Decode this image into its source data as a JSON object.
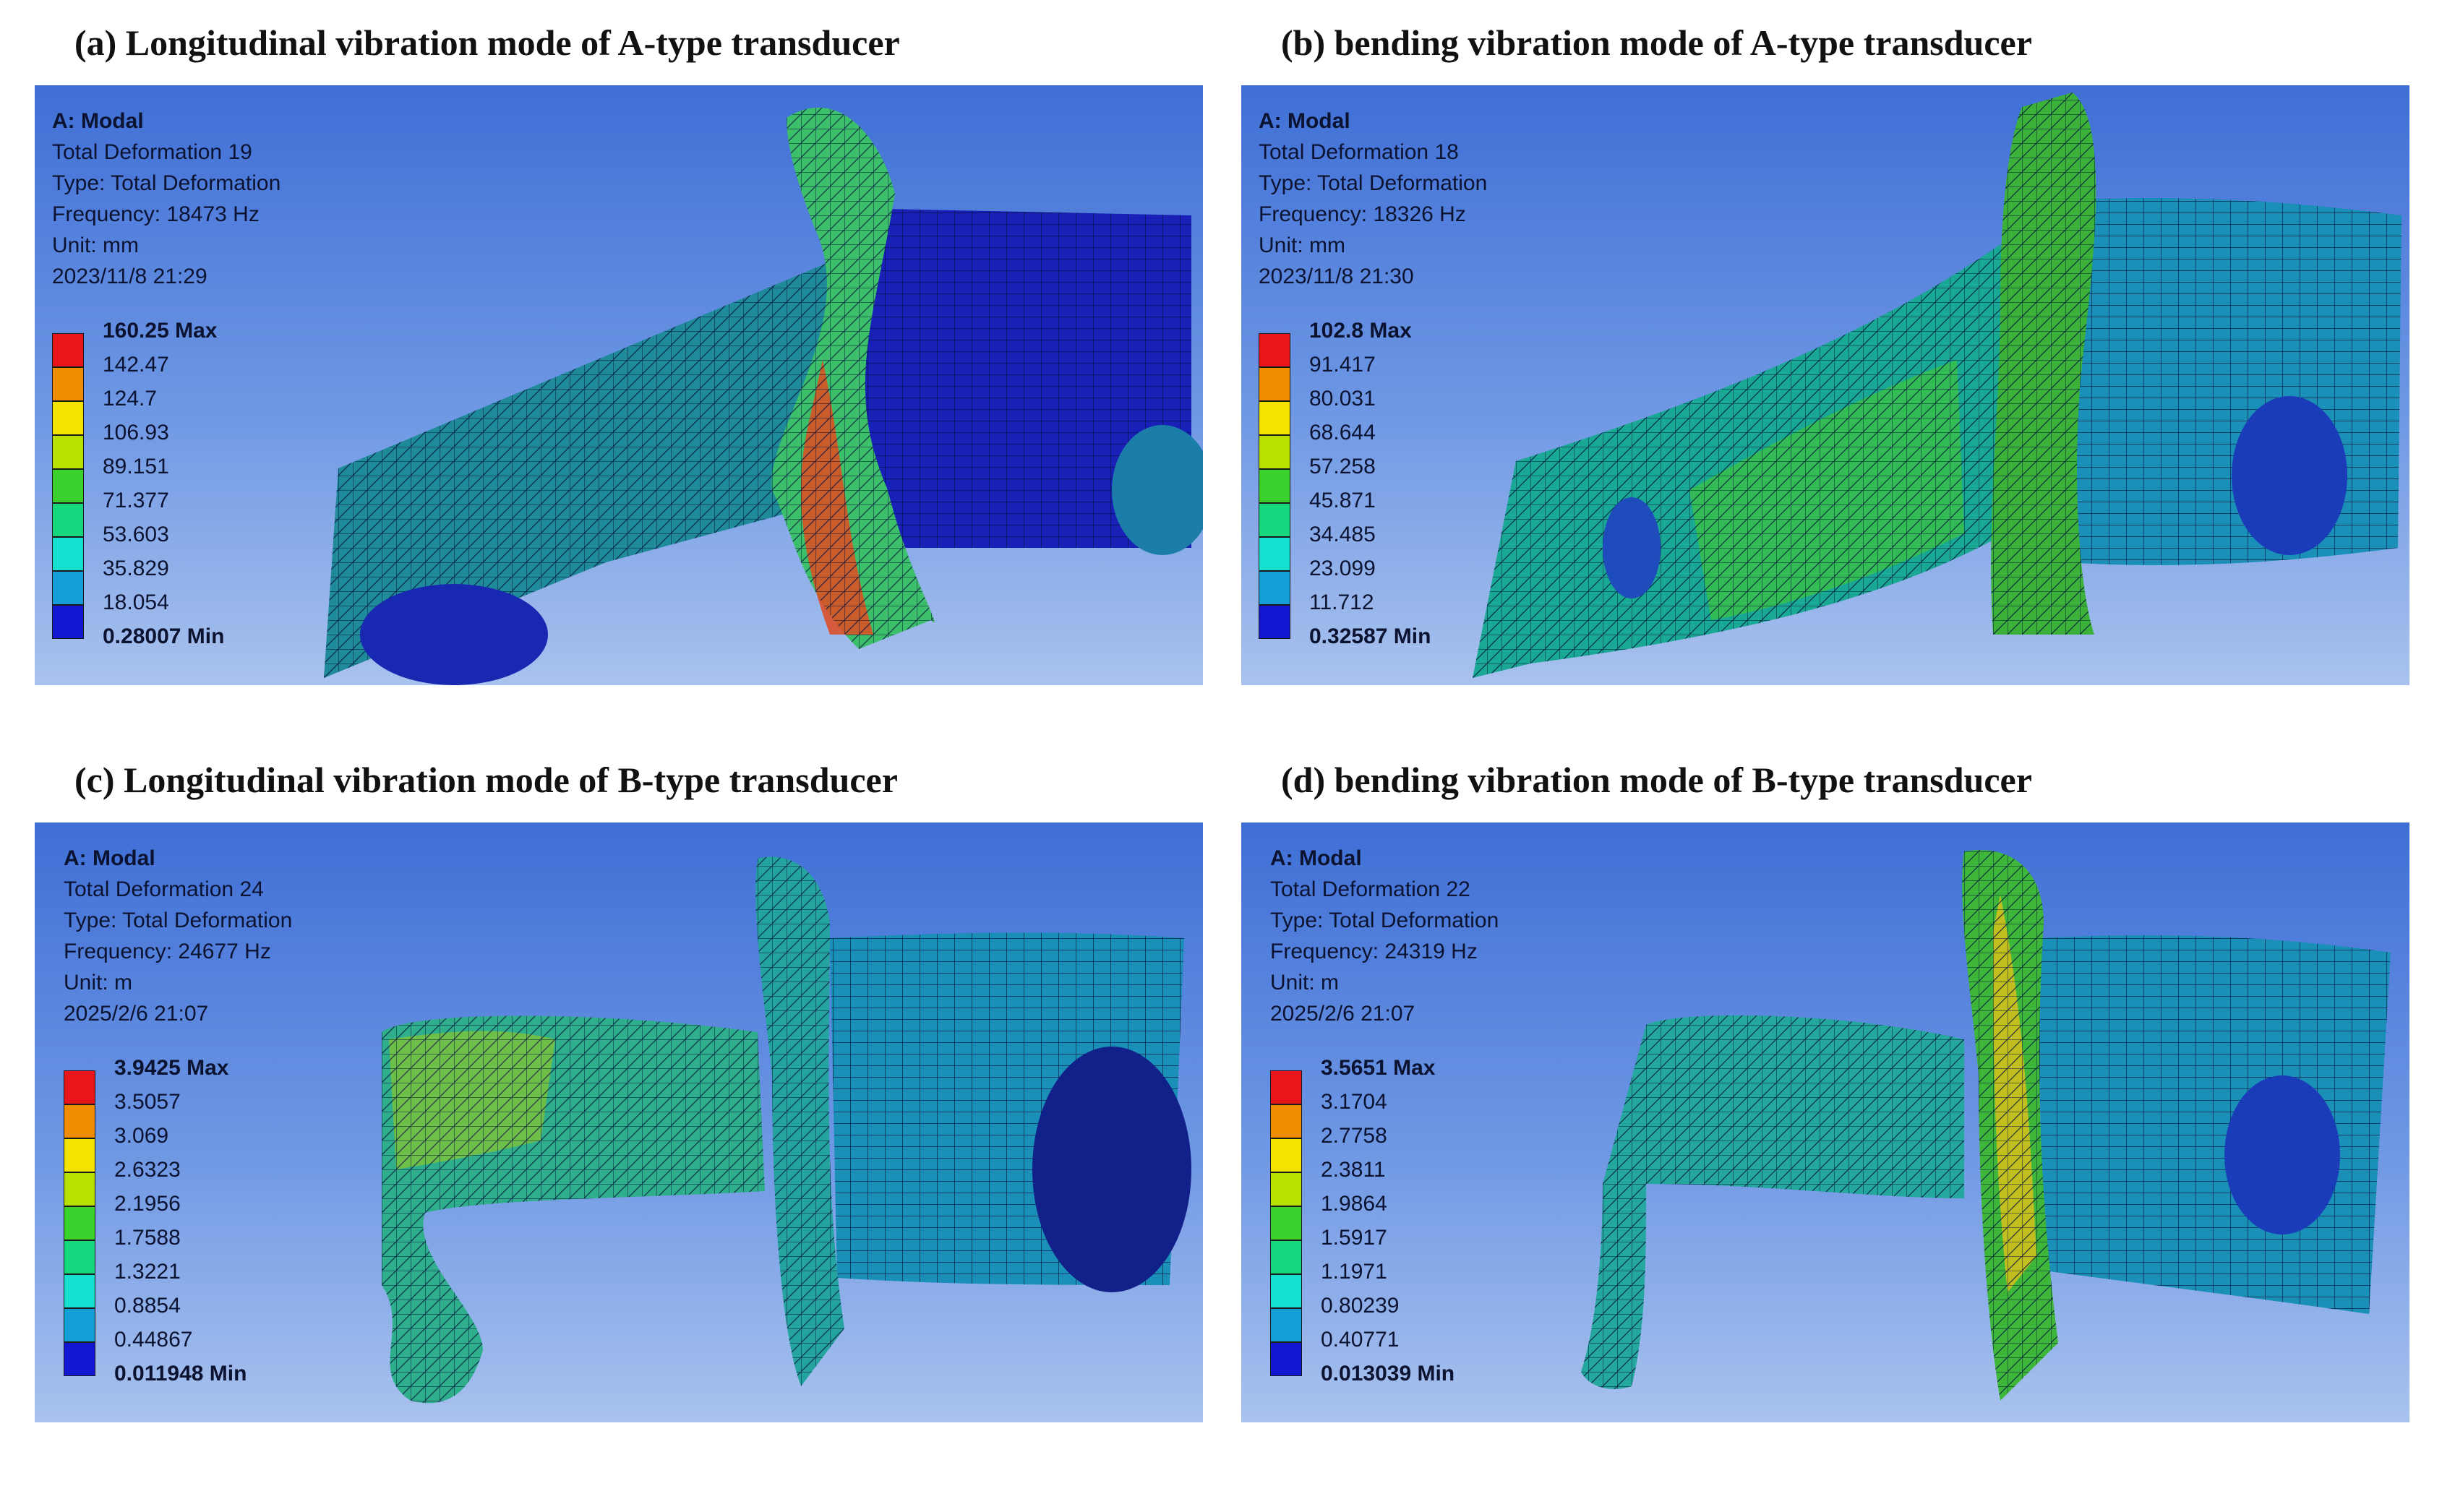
{
  "panels": [
    {
      "caption": "(a) Longitudinal vibration mode of A-type transducer",
      "info": [
        "A: Modal",
        "Total Deformation 19",
        "Type: Total Deformation",
        "Frequency: 18473 Hz",
        "Unit: mm",
        "2023/11/8 21:29"
      ],
      "legend": [
        "160.25 Max",
        "142.47",
        "124.7",
        "106.93",
        "89.151",
        "71.377",
        "53.603",
        "35.829",
        "18.054",
        "0.28007 Min"
      ]
    },
    {
      "caption": "(b) bending vibration mode of A-type transducer",
      "info": [
        "A: Modal",
        "Total Deformation 18",
        "Type: Total Deformation",
        "Frequency: 18326 Hz",
        "Unit: mm",
        "2023/11/8 21:30"
      ],
      "legend": [
        "102.8 Max",
        "91.417",
        "80.031",
        "68.644",
        "57.258",
        "45.871",
        "34.485",
        "23.099",
        "11.712",
        "0.32587 Min"
      ]
    },
    {
      "caption": "(c) Longitudinal vibration mode of B-type transducer",
      "info": [
        "A: Modal",
        "Total Deformation 24",
        "Type: Total Deformation",
        "Frequency: 24677 Hz",
        "Unit: m",
        "2025/2/6 21:07"
      ],
      "legend": [
        "3.9425 Max",
        "3.5057",
        "3.069",
        "2.6323",
        "2.1956",
        "1.7588",
        "1.3221",
        "0.8854",
        "0.44867",
        "0.011948 Min"
      ]
    },
    {
      "caption": "(d) bending vibration mode of B-type transducer",
      "info": [
        "A: Modal",
        "Total Deformation 22",
        "Type: Total Deformation",
        "Frequency: 24319 Hz",
        "Unit: m",
        "2025/2/6 21:07"
      ],
      "legend": [
        "3.5651 Max",
        "3.1704",
        "2.7758",
        "2.3811",
        "1.9864",
        "1.5917",
        "1.1971",
        "0.80239",
        "0.40771",
        "0.013039 Min"
      ]
    }
  ],
  "colors": {
    "legend_scale": [
      "#e8161b",
      "#f08c00",
      "#f2e400",
      "#b8e000",
      "#3cd22e",
      "#16d67e",
      "#14e0d0",
      "#149ed8",
      "#1216d0"
    ],
    "background_top": "#3f6fd6",
    "background_bottom": "#a9c2ee"
  }
}
